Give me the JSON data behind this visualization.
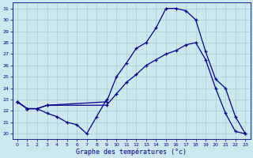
{
  "xlabel": "Graphe des températures (°c)",
  "bg_color": "#cce8ee",
  "line_color": "#00008b",
  "grid_color": "#aacccc",
  "xlim": [
    -0.5,
    23.5
  ],
  "ylim": [
    19.5,
    31.5
  ],
  "xticks": [
    0,
    1,
    2,
    3,
    4,
    5,
    6,
    7,
    8,
    9,
    10,
    11,
    12,
    13,
    14,
    15,
    16,
    17,
    18,
    19,
    20,
    21,
    22,
    23
  ],
  "yticks": [
    20,
    21,
    22,
    23,
    24,
    25,
    26,
    27,
    28,
    29,
    30,
    31
  ],
  "line_top_x": [
    0,
    1,
    2,
    3,
    9,
    10,
    11,
    12,
    13,
    14,
    15,
    16,
    17,
    18,
    19,
    20,
    21,
    22,
    23
  ],
  "line_top_y": [
    22.8,
    22.2,
    22.2,
    22.5,
    22.8,
    25.0,
    26.2,
    27.5,
    28.0,
    29.3,
    31.0,
    31.0,
    30.8,
    30.0,
    27.2,
    24.8,
    24.0,
    21.5,
    20.0
  ],
  "line_mid_x": [
    0,
    1,
    2,
    3,
    9,
    10,
    11,
    12,
    13,
    14,
    15,
    16,
    17,
    18,
    19,
    20,
    21,
    22,
    23
  ],
  "line_mid_y": [
    22.8,
    22.2,
    22.2,
    22.5,
    22.5,
    23.5,
    24.5,
    25.2,
    26.0,
    26.5,
    27.0,
    27.3,
    27.8,
    28.0,
    26.5,
    24.0,
    21.8,
    20.2,
    20.0
  ],
  "line_bot_x": [
    0,
    1,
    2,
    3,
    4,
    5,
    6,
    7,
    8,
    9
  ],
  "line_bot_y": [
    22.8,
    22.2,
    22.2,
    21.8,
    21.5,
    21.0,
    20.8,
    20.0,
    21.5,
    23.0
  ],
  "lw": 0.9,
  "ms": 2.5
}
